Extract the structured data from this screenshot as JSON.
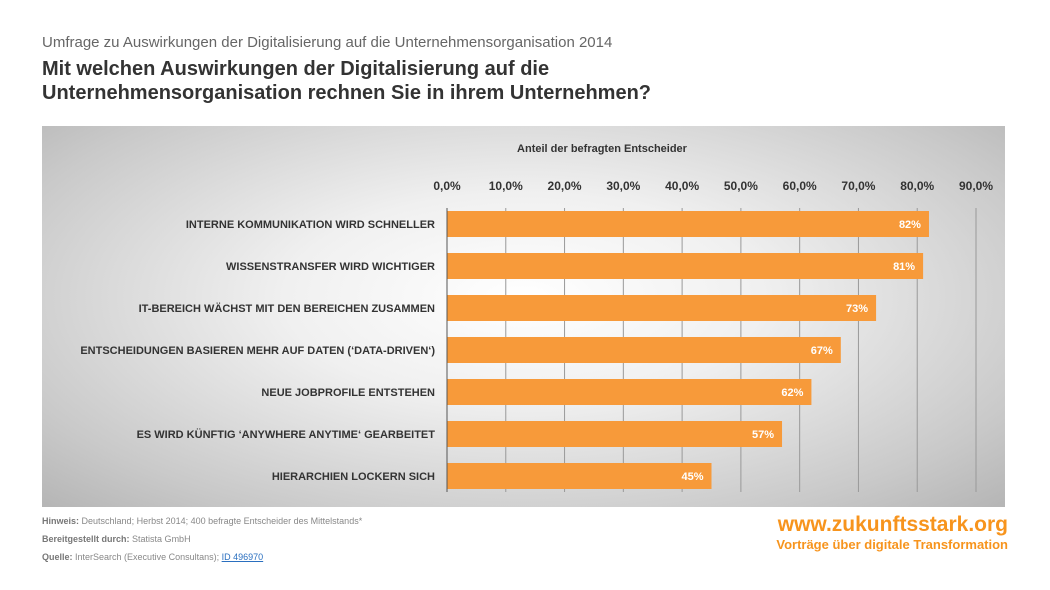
{
  "header": {
    "subtitle": "Umfrage zu Auswirkungen der Digitalisierung auf die Unternehmensorganisation 2014",
    "title": "Mit welchen Auswirkungen der Digitalisierung auf die Unternehmensorganisation rechnen Sie in ihrem Unternehmen?"
  },
  "chart_data": {
    "type": "bar",
    "orientation": "horizontal",
    "title": "Anteil der befragten Entscheider",
    "categories": [
      "INTERNE KOMMUNIKATION WIRD SCHNELLER",
      "WISSENSTRANSFER WIRD WICHTIGER",
      "IT-BEREICH WÄCHST MIT DEN BEREICHEN ZUSAMMEN",
      "ENTSCHEIDUNGEN BASIEREN MEHR AUF DATEN (‘DATA-DRIVEN‘)",
      "NEUE JOBPROFILE ENTSTEHEN",
      "ES WIRD KÜNFTIG ‘ANYWHERE ANYTIME‘ GEARBEITET",
      "HIERARCHIEN LOCKERN SICH"
    ],
    "values": [
      82,
      81,
      73,
      67,
      62,
      57,
      45
    ],
    "data_labels": [
      "82%",
      "81%",
      "73%",
      "67%",
      "62%",
      "57%",
      "45%"
    ],
    "xlim": [
      0,
      90
    ],
    "xticks": [
      "0,0%",
      "10,0%",
      "20,0%",
      "30,0%",
      "40,0%",
      "50,0%",
      "60,0%",
      "70,0%",
      "80,0%",
      "90,0%"
    ],
    "xaxis_position": "top",
    "grid": true,
    "bar_color": "#f79a3a"
  },
  "footer": {
    "hint_label": "Hinweis:",
    "hint": "Deutschland; Herbst 2014; 400 befragte Entscheider des Mittelstands*",
    "provided_label": "Bereitgestellt durch:",
    "provided": "Statista GmbH",
    "source_label": "Quelle:",
    "source": "InterSearch (Executive Consultans);",
    "source_link": "ID 496970"
  },
  "brand": {
    "url": "www.zukunftsstark.org",
    "tagline": "Vorträge über digitale Transformation"
  }
}
